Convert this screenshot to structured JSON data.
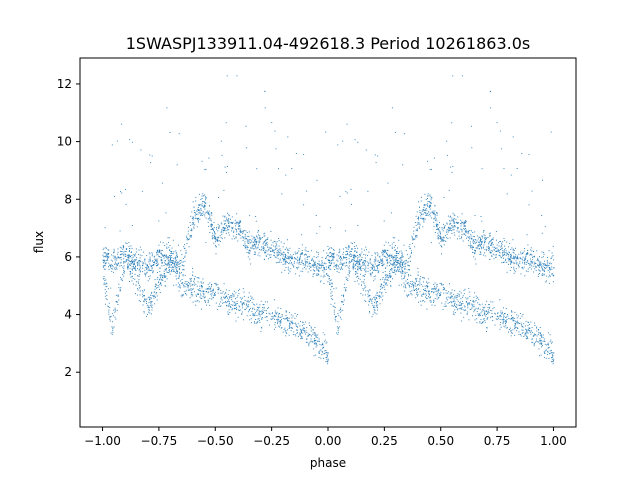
{
  "chart_data": {
    "type": "scatter",
    "title": "1SWASPJ133911.04-492618.3 Period 10261863.0s",
    "xlabel": "phase",
    "ylabel": "flux",
    "xlim": [
      -1.1,
      1.1
    ],
    "ylim": [
      0.1,
      12.9
    ],
    "xticks": [
      -1.0,
      -0.75,
      -0.5,
      -0.25,
      0.0,
      0.25,
      0.5,
      0.75,
      1.0
    ],
    "xtick_labels": [
      "−1.00",
      "−0.75",
      "−0.50",
      "−0.25",
      "0.00",
      "0.25",
      "0.50",
      "0.75",
      "1.00"
    ],
    "yticks": [
      2,
      4,
      6,
      8,
      10,
      12
    ],
    "ytick_labels": [
      "2",
      "4",
      "6",
      "8",
      "10",
      "12"
    ],
    "grid": false,
    "marker_color": "#1f77b4",
    "period_profile": {
      "phase": [
        -1.0,
        -0.96,
        -0.9,
        -0.85,
        -0.8,
        -0.75,
        -0.7,
        -0.65,
        -0.6,
        -0.55,
        -0.5,
        -0.45,
        -0.4,
        -0.35,
        -0.3,
        -0.25,
        -0.2,
        -0.15,
        -0.1,
        -0.05,
        0.0
      ],
      "upper_flux": [
        6.0,
        5.9,
        6.2,
        5.8,
        5.6,
        6.1,
        6.0,
        5.7,
        7.3,
        7.9,
        6.6,
        7.2,
        7.0,
        6.4,
        6.5,
        6.3,
        6.0,
        5.9,
        6.0,
        5.7,
        5.6
      ],
      "lower_flux": [
        5.5,
        3.5,
        6.0,
        5.1,
        4.2,
        5.2,
        5.8,
        5.0,
        5.0,
        4.8,
        4.8,
        4.5,
        4.4,
        4.3,
        4.0,
        4.0,
        3.8,
        3.6,
        3.4,
        3.0,
        2.6
      ]
    }
  }
}
